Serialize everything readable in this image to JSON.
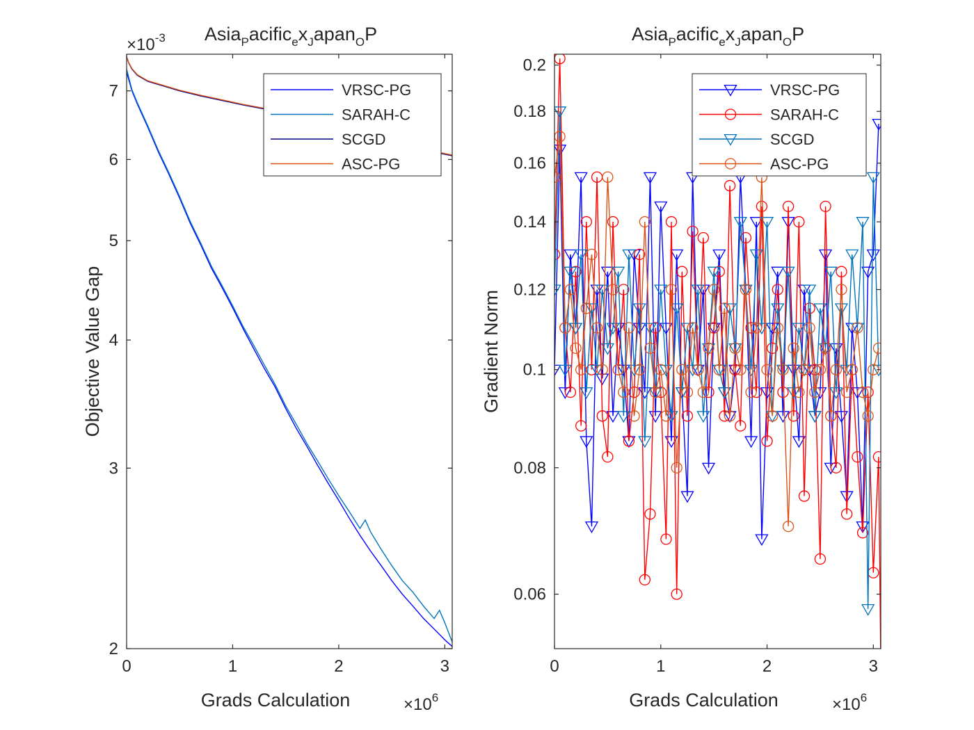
{
  "figure": {
    "panels": [
      {
        "title_parts": [
          {
            "t": "Asia",
            "s": 0
          },
          {
            "t": "P",
            "s": 1
          },
          {
            "t": "acific",
            "s": 0
          },
          {
            "t": "e",
            "s": 1
          },
          {
            "t": "x",
            "s": 0
          },
          {
            "t": "J",
            "s": 1
          },
          {
            "t": "apan",
            "s": 0
          },
          {
            "t": "O",
            "s": 1
          },
          {
            "t": "P",
            "s": 0
          }
        ],
        "xlabel": "Grads Calculation",
        "ylabel": "Objective Value Gap",
        "x_exponent": "6",
        "y_exponent": "-3",
        "xticks": [
          0,
          1,
          2,
          3
        ],
        "yticks": [
          2,
          3,
          4,
          5,
          6,
          7
        ],
        "legend": [
          "VRSC-PG",
          "SARAH-C",
          "SCGD",
          "ASC-PG"
        ]
      },
      {
        "title_parts": [
          {
            "t": "Asia",
            "s": 0
          },
          {
            "t": "P",
            "s": 1
          },
          {
            "t": "acific",
            "s": 0
          },
          {
            "t": "e",
            "s": 1
          },
          {
            "t": "x",
            "s": 0
          },
          {
            "t": "J",
            "s": 1
          },
          {
            "t": "apan",
            "s": 0
          },
          {
            "t": "O",
            "s": 1
          },
          {
            "t": "P",
            "s": 0
          }
        ],
        "xlabel": "Grads Calculation",
        "ylabel": "Gradient Norm",
        "x_exponent": "6",
        "xticks": [
          0,
          1,
          2,
          3
        ],
        "yticks": [
          "0.06",
          "0.08",
          "0.1",
          "0.12",
          "0.14",
          "0.16",
          "0.18",
          "0.2"
        ],
        "legend": [
          "VRSC-PG",
          "SARAH-C",
          "SCGD",
          "ASC-PG"
        ]
      }
    ]
  },
  "chart_data": [
    {
      "type": "line",
      "title": "Asia_Pacific_ex_Japan_OP",
      "xlabel": "Grads Calculation (x10^6)",
      "ylabel": "Objective Value Gap (x10^-3)",
      "xlim": [
        0,
        3.07
      ],
      "ylim": [
        2.0,
        7.6
      ],
      "yscale": "log",
      "grid": false,
      "legend_position": "top-right",
      "series": [
        {
          "name": "VRSC-PG",
          "color": "#0000ff",
          "x": [
            0,
            0.05,
            0.1,
            0.2,
            0.3,
            0.4,
            0.5,
            0.6,
            0.7,
            0.8,
            0.9,
            1.0,
            1.1,
            1.2,
            1.3,
            1.4,
            1.5,
            1.6,
            1.7,
            1.8,
            1.9,
            2.0,
            2.1,
            2.2,
            2.3,
            2.4,
            2.5,
            2.6,
            2.7,
            2.8,
            2.9,
            3.0,
            3.07
          ],
          "y": [
            7.3,
            7.0,
            6.8,
            6.45,
            6.1,
            5.8,
            5.5,
            5.2,
            4.95,
            4.7,
            4.5,
            4.3,
            4.1,
            3.92,
            3.75,
            3.6,
            3.43,
            3.28,
            3.15,
            3.02,
            2.9,
            2.79,
            2.68,
            2.58,
            2.49,
            2.41,
            2.33,
            2.26,
            2.2,
            2.14,
            2.09,
            2.04,
            2.01
          ]
        },
        {
          "name": "SARAH-C",
          "color": "#0072bd",
          "x": [
            0,
            0.05,
            0.1,
            0.2,
            0.3,
            0.4,
            0.5,
            0.6,
            0.7,
            0.8,
            0.9,
            1.0,
            1.1,
            1.2,
            1.3,
            1.4,
            1.5,
            1.6,
            1.7,
            1.8,
            1.9,
            2.0,
            2.1,
            2.2,
            2.25,
            2.3,
            2.4,
            2.5,
            2.6,
            2.7,
            2.8,
            2.9,
            2.95,
            3.0,
            3.07
          ],
          "y": [
            7.35,
            7.02,
            6.82,
            6.47,
            6.12,
            5.82,
            5.52,
            5.22,
            4.97,
            4.72,
            4.52,
            4.32,
            4.12,
            3.95,
            3.78,
            3.62,
            3.45,
            3.31,
            3.17,
            3.05,
            2.93,
            2.82,
            2.72,
            2.62,
            2.67,
            2.6,
            2.5,
            2.41,
            2.33,
            2.27,
            2.2,
            2.14,
            2.18,
            2.12,
            2.03
          ]
        },
        {
          "name": "SCGD",
          "color": "#00008b",
          "x": [
            0,
            0.02,
            0.05,
            0.1,
            0.2,
            0.3,
            0.5,
            0.7,
            0.9,
            1.1,
            1.3,
            1.5,
            1.7,
            1.9,
            2.1,
            2.3,
            2.5,
            2.7,
            2.9,
            3.07
          ],
          "y": [
            7.55,
            7.45,
            7.35,
            7.25,
            7.15,
            7.1,
            7.0,
            6.92,
            6.85,
            6.78,
            6.72,
            6.62,
            6.54,
            6.46,
            6.38,
            6.3,
            6.22,
            6.16,
            6.1,
            6.05
          ]
        },
        {
          "name": "ASC-PG",
          "color": "#d95319",
          "x": [
            0,
            0.02,
            0.05,
            0.1,
            0.2,
            0.3,
            0.5,
            0.7,
            0.9,
            1.1,
            1.3,
            1.5,
            1.7,
            1.9,
            2.1,
            2.3,
            2.5,
            2.7,
            2.9,
            3.07
          ],
          "y": [
            7.56,
            7.46,
            7.36,
            7.26,
            7.16,
            7.11,
            7.01,
            6.93,
            6.86,
            6.79,
            6.73,
            6.63,
            6.55,
            6.47,
            6.39,
            6.31,
            6.23,
            6.17,
            6.11,
            6.06
          ]
        }
      ]
    },
    {
      "type": "line",
      "title": "Asia_Pacific_ex_Japan_OP",
      "xlabel": "Grads Calculation (x10^6)",
      "ylabel": "Gradient Norm",
      "xlim": [
        0,
        3.07
      ],
      "ylim": [
        0.053,
        0.205
      ],
      "yscale": "log",
      "grid": false,
      "legend_position": "top-right",
      "series": [
        {
          "name": "VRSC-PG",
          "color": "#0000ff",
          "marker": "triangle-down",
          "x": [
            0.0,
            0.05,
            0.1,
            0.15,
            0.2,
            0.25,
            0.3,
            0.35,
            0.4,
            0.45,
            0.5,
            0.55,
            0.6,
            0.65,
            0.7,
            0.75,
            0.8,
            0.85,
            0.9,
            0.95,
            1.0,
            1.05,
            1.1,
            1.15,
            1.2,
            1.25,
            1.3,
            1.35,
            1.4,
            1.45,
            1.5,
            1.55,
            1.6,
            1.65,
            1.7,
            1.75,
            1.8,
            1.85,
            1.9,
            1.95,
            2.0,
            2.05,
            2.1,
            2.15,
            2.2,
            2.25,
            2.3,
            2.35,
            2.4,
            2.45,
            2.5,
            2.55,
            2.6,
            2.65,
            2.7,
            2.75,
            2.8,
            2.85,
            2.9,
            2.95,
            3.0,
            3.05
          ],
          "y": [
            0.1,
            0.165,
            0.095,
            0.13,
            0.11,
            0.155,
            0.085,
            0.07,
            0.12,
            0.098,
            0.125,
            0.09,
            0.11,
            0.1,
            0.085,
            0.13,
            0.11,
            0.095,
            0.155,
            0.09,
            0.145,
            0.11,
            0.085,
            0.13,
            0.095,
            0.075,
            0.155,
            0.1,
            0.12,
            0.08,
            0.11,
            0.13,
            0.095,
            0.09,
            0.1,
            0.155,
            0.12,
            0.085,
            0.14,
            0.068,
            0.095,
            0.11,
            0.125,
            0.09,
            0.14,
            0.1,
            0.085,
            0.12,
            0.1,
            0.09,
            0.095,
            0.13,
            0.08,
            0.105,
            0.09,
            0.075,
            0.11,
            0.095,
            0.07,
            0.125,
            0.13,
            0.175
          ]
        },
        {
          "name": "SARAH-C",
          "color": "#ff0000",
          "marker": "circle",
          "x": [
            0.0,
            0.05,
            0.1,
            0.15,
            0.2,
            0.25,
            0.3,
            0.35,
            0.4,
            0.45,
            0.5,
            0.55,
            0.6,
            0.65,
            0.7,
            0.75,
            0.8,
            0.85,
            0.9,
            0.95,
            1.0,
            1.05,
            1.1,
            1.15,
            1.2,
            1.25,
            1.3,
            1.35,
            1.4,
            1.45,
            1.5,
            1.55,
            1.6,
            1.65,
            1.7,
            1.75,
            1.8,
            1.85,
            1.9,
            1.95,
            2.0,
            2.05,
            2.1,
            2.15,
            2.2,
            2.25,
            2.3,
            2.35,
            2.4,
            2.45,
            2.5,
            2.55,
            2.6,
            2.65,
            2.7,
            2.75,
            2.8,
            2.85,
            2.9,
            2.95,
            3.0,
            3.05,
            3.07
          ],
          "y": [
            0.13,
            0.203,
            0.11,
            0.095,
            0.125,
            0.088,
            0.14,
            0.1,
            0.155,
            0.09,
            0.082,
            0.14,
            0.1,
            0.12,
            0.085,
            0.095,
            0.13,
            0.062,
            0.072,
            0.11,
            0.095,
            0.068,
            0.14,
            0.06,
            0.125,
            0.09,
            0.137,
            0.1,
            0.135,
            0.095,
            0.11,
            0.125,
            0.09,
            0.152,
            0.1,
            0.088,
            0.135,
            0.11,
            0.095,
            0.145,
            0.085,
            0.105,
            0.12,
            0.095,
            0.145,
            0.09,
            0.14,
            0.075,
            0.115,
            0.1,
            0.065,
            0.145,
            0.09,
            0.08,
            0.125,
            0.072,
            0.1,
            0.082,
            0.069,
            0.095,
            0.063,
            0.082,
            0.051
          ]
        },
        {
          "name": "SCGD",
          "color": "#0072bd",
          "marker": "triangle-down",
          "x": [
            0.0,
            0.05,
            0.1,
            0.15,
            0.2,
            0.25,
            0.3,
            0.35,
            0.4,
            0.45,
            0.5,
            0.55,
            0.6,
            0.65,
            0.7,
            0.75,
            0.8,
            0.85,
            0.9,
            0.95,
            1.0,
            1.05,
            1.1,
            1.15,
            1.2,
            1.25,
            1.3,
            1.35,
            1.4,
            1.45,
            1.5,
            1.55,
            1.6,
            1.65,
            1.7,
            1.75,
            1.8,
            1.85,
            1.9,
            1.95,
            2.0,
            2.05,
            2.1,
            2.15,
            2.2,
            2.25,
            2.3,
            2.35,
            2.4,
            2.45,
            2.5,
            2.55,
            2.6,
            2.65,
            2.7,
            2.75,
            2.8,
            2.85,
            2.9,
            2.95,
            3.0,
            3.05
          ],
          "y": [
            0.12,
            0.18,
            0.1,
            0.125,
            0.11,
            0.13,
            0.095,
            0.115,
            0.1,
            0.12,
            0.105,
            0.11,
            0.125,
            0.09,
            0.13,
            0.1,
            0.115,
            0.085,
            0.11,
            0.095,
            0.12,
            0.1,
            0.09,
            0.115,
            0.095,
            0.11,
            0.1,
            0.12,
            0.09,
            0.105,
            0.125,
            0.1,
            0.095,
            0.115,
            0.105,
            0.14,
            0.12,
            0.1,
            0.13,
            0.11,
            0.14,
            0.09,
            0.115,
            0.1,
            0.125,
            0.095,
            0.11,
            0.1,
            0.12,
            0.09,
            0.115,
            0.105,
            0.125,
            0.095,
            0.115,
            0.1,
            0.13,
            0.11,
            0.14,
            0.058,
            0.155,
            0.1
          ]
        },
        {
          "name": "ASC-PG",
          "color": "#d95319",
          "marker": "circle",
          "x": [
            0.0,
            0.05,
            0.1,
            0.15,
            0.2,
            0.25,
            0.3,
            0.35,
            0.4,
            0.45,
            0.5,
            0.55,
            0.6,
            0.65,
            0.7,
            0.75,
            0.8,
            0.85,
            0.9,
            0.95,
            1.0,
            1.05,
            1.1,
            1.15,
            1.2,
            1.25,
            1.3,
            1.35,
            1.4,
            1.45,
            1.5,
            1.55,
            1.6,
            1.65,
            1.7,
            1.75,
            1.8,
            1.85,
            1.9,
            1.95,
            2.0,
            2.05,
            2.1,
            2.15,
            2.2,
            2.25,
            2.3,
            2.35,
            2.4,
            2.45,
            2.5,
            2.55,
            2.6,
            2.65,
            2.7,
            2.75,
            2.8,
            2.85,
            2.9,
            2.95,
            3.0,
            3.05
          ],
          "y": [
            0.155,
            0.17,
            0.11,
            0.12,
            0.105,
            0.1,
            0.115,
            0.13,
            0.11,
            0.1,
            0.155,
            0.12,
            0.1,
            0.095,
            0.11,
            0.09,
            0.1,
            0.14,
            0.105,
            0.095,
            0.1,
            0.09,
            0.12,
            0.08,
            0.1,
            0.095,
            0.11,
            0.1,
            0.095,
            0.105,
            0.12,
            0.1,
            0.115,
            0.09,
            0.105,
            0.1,
            0.12,
            0.095,
            0.11,
            0.155,
            0.1,
            0.09,
            0.11,
            0.1,
            0.07,
            0.105,
            0.095,
            0.1,
            0.11,
            0.095,
            0.1,
            0.105,
            0.09,
            0.1,
            0.12,
            0.095,
            0.1,
            0.11,
            0.095,
            0.09,
            0.1,
            0.105
          ]
        }
      ]
    }
  ]
}
